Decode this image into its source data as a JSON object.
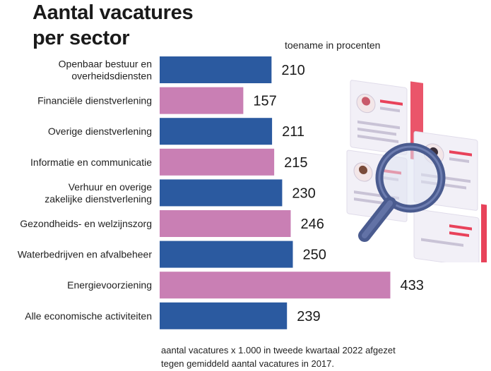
{
  "title_line1": "Aantal vacatures",
  "title_line2": "per sector",
  "subtitle": "toename in procenten",
  "footnote_line1": "aantal vacatures x 1.000 in tweede kwartaal 2022 afgezet",
  "footnote_line2": "tegen gemiddeld aantal vacatures in 2017.",
  "colors": {
    "blue": "#2b5aa0",
    "pink": "#c97fb4",
    "accent_red": "#e8425a"
  },
  "illustration": "vacancy-search-magnifier-icon",
  "chart_data": {
    "type": "bar",
    "orientation": "horizontal",
    "categories": [
      [
        "Openbaar bestuur en",
        "overheidsdiensten"
      ],
      [
        "Financiële dienstverlening"
      ],
      [
        "Overige dienstverlening"
      ],
      [
        "Informatie en communicatie"
      ],
      [
        "Verhuur en overige",
        "zakelijke dienstverlening"
      ],
      [
        "Gezondheids- en welzijnszorg"
      ],
      [
        "Waterbedrijven en afvalbeheer"
      ],
      [
        "Energievoorziening"
      ],
      [
        "Alle economische activiteiten"
      ]
    ],
    "values": [
      210,
      157,
      211,
      215,
      230,
      246,
      250,
      433,
      239
    ],
    "bar_colors": [
      "blue",
      "pink",
      "blue",
      "pink",
      "blue",
      "pink",
      "blue",
      "pink",
      "blue"
    ],
    "title": "Aantal vacatures per sector",
    "xlabel": "",
    "ylabel": "",
    "grid": false,
    "legend": "none"
  }
}
